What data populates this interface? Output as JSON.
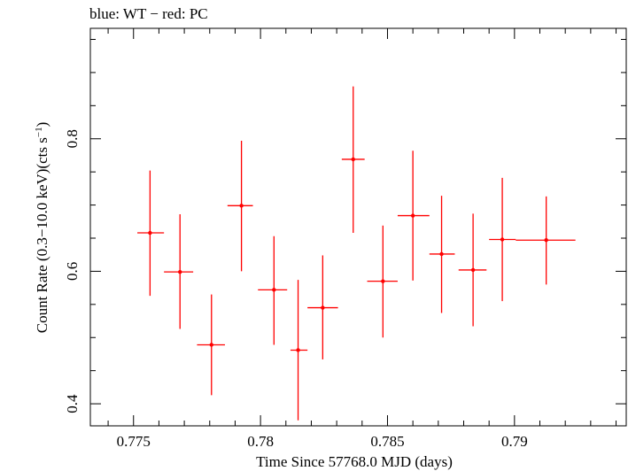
{
  "chart_data": {
    "type": "scatter",
    "title": "blue: WT − red: PC",
    "xlabel": "Time Since 57768.0 MJD (days)",
    "ylabel_main": "Count Rate (0.3−10.0 keV)(cts s",
    "ylabel_sup": "−1",
    "ylabel_close": ")",
    "xlim": [
      0.7733,
      0.7944
    ],
    "ylim": [
      0.3667,
      0.9667
    ],
    "x_ticks": [
      {
        "value": 0.775,
        "label": "0.775"
      },
      {
        "value": 0.78,
        "label": "0.78"
      },
      {
        "value": 0.785,
        "label": "0.785"
      },
      {
        "value": 0.79,
        "label": "0.79"
      }
    ],
    "y_ticks": [
      {
        "value": 0.4,
        "label": "0.4"
      },
      {
        "value": 0.6,
        "label": "0.6"
      },
      {
        "value": 0.8,
        "label": "0.8"
      }
    ],
    "x_minor_step": 0.001,
    "y_minor_step": 0.05,
    "grid": false,
    "series": [
      {
        "color": "#ff0000",
        "points": [
          {
            "x": 0.77565,
            "xlo": 0.77515,
            "xhi": 0.7762,
            "y": 0.658,
            "ylo": 0.563,
            "yhi": 0.752
          },
          {
            "x": 0.77683,
            "xlo": 0.7762,
            "xhi": 0.77735,
            "y": 0.599,
            "ylo": 0.513,
            "yhi": 0.686
          },
          {
            "x": 0.77807,
            "xlo": 0.7775,
            "xhi": 0.7786,
            "y": 0.489,
            "ylo": 0.413,
            "yhi": 0.565
          },
          {
            "x": 0.77925,
            "xlo": 0.7787,
            "xhi": 0.7797,
            "y": 0.699,
            "ylo": 0.6,
            "yhi": 0.797
          },
          {
            "x": 0.78053,
            "xlo": 0.7799,
            "xhi": 0.78105,
            "y": 0.572,
            "ylo": 0.489,
            "yhi": 0.653
          },
          {
            "x": 0.78148,
            "xlo": 0.78118,
            "xhi": 0.78185,
            "y": 0.481,
            "ylo": 0.375,
            "yhi": 0.587
          },
          {
            "x": 0.78245,
            "xlo": 0.78185,
            "xhi": 0.78305,
            "y": 0.545,
            "ylo": 0.467,
            "yhi": 0.624
          },
          {
            "x": 0.78365,
            "xlo": 0.7832,
            "xhi": 0.7841,
            "y": 0.769,
            "ylo": 0.658,
            "yhi": 0.879
          },
          {
            "x": 0.78482,
            "xlo": 0.7842,
            "xhi": 0.7854,
            "y": 0.585,
            "ylo": 0.5,
            "yhi": 0.669
          },
          {
            "x": 0.786,
            "xlo": 0.7854,
            "xhi": 0.78665,
            "y": 0.684,
            "ylo": 0.586,
            "yhi": 0.782
          },
          {
            "x": 0.78713,
            "xlo": 0.78665,
            "xhi": 0.78765,
            "y": 0.626,
            "ylo": 0.537,
            "yhi": 0.714
          },
          {
            "x": 0.78837,
            "xlo": 0.7878,
            "xhi": 0.7889,
            "y": 0.602,
            "ylo": 0.517,
            "yhi": 0.687
          },
          {
            "x": 0.78952,
            "xlo": 0.789,
            "xhi": 0.79005,
            "y": 0.648,
            "ylo": 0.555,
            "yhi": 0.741
          },
          {
            "x": 0.79125,
            "xlo": 0.79005,
            "xhi": 0.7924,
            "y": 0.647,
            "ylo": 0.58,
            "yhi": 0.713
          }
        ]
      }
    ]
  }
}
